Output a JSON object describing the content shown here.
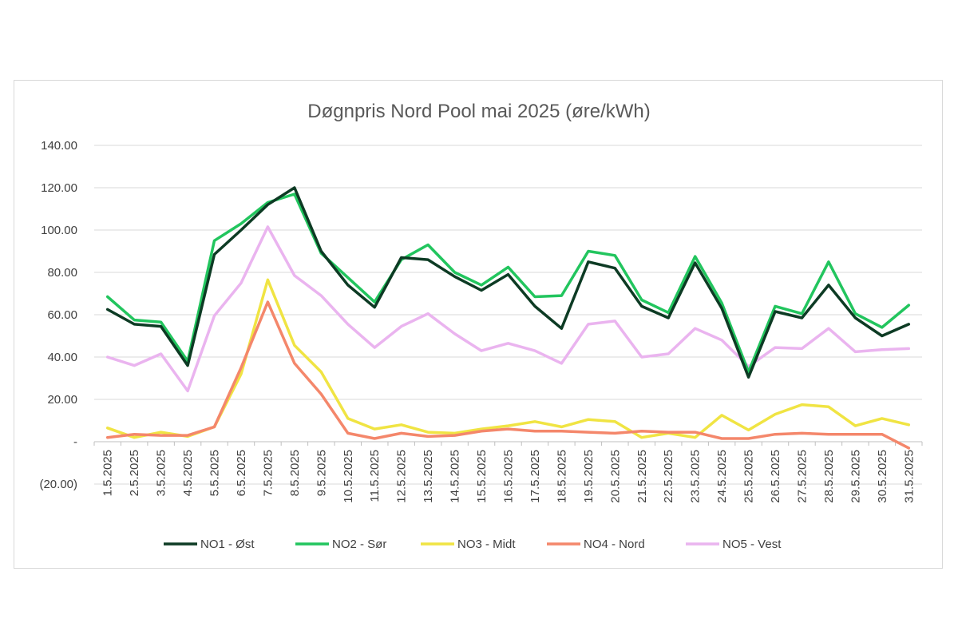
{
  "chart_data": {
    "type": "line",
    "title": "Døgnpris Nord Pool mai 2025 (øre/kWh)",
    "xlabel": "",
    "ylabel": "",
    "ylim": [
      -20,
      140
    ],
    "y_ticks": [
      {
        "value": 140,
        "label": "140.00"
      },
      {
        "value": 120,
        "label": "120.00"
      },
      {
        "value": 100,
        "label": "100.00"
      },
      {
        "value": 80,
        "label": "80.00"
      },
      {
        "value": 60,
        "label": "60.00"
      },
      {
        "value": 40,
        "label": "40.00"
      },
      {
        "value": 20,
        "label": "20.00"
      },
      {
        "value": 0,
        "label": "-"
      },
      {
        "value": -20,
        "label": "(20.00)"
      }
    ],
    "grid": true,
    "legend": "bottom",
    "categories": [
      "1.5.2025",
      "2.5.2025",
      "3.5.2025",
      "4.5.2025",
      "5.5.2025",
      "6.5.2025",
      "7.5.2025",
      "8.5.2025",
      "9.5.2025",
      "10.5.2025",
      "11.5.2025",
      "12.5.2025",
      "13.5.2025",
      "14.5.2025",
      "15.5.2025",
      "16.5.2025",
      "17.5.2025",
      "18.5.2025",
      "19.5.2025",
      "20.5.2025",
      "21.5.2025",
      "22.5.2025",
      "23.5.2025",
      "24.5.2025",
      "25.5.2025",
      "26.5.2025",
      "27.5.2025",
      "28.5.2025",
      "29.5.2025",
      "30.5.2025",
      "31.5.2025"
    ],
    "series": [
      {
        "name": "NO1 - Øst",
        "color": "#0d3b24",
        "values": [
          62.5,
          55.5,
          54.5,
          36,
          88.5,
          100,
          112,
          120,
          90,
          74,
          63.5,
          87,
          86,
          78,
          71.5,
          79,
          64,
          53.5,
          85,
          82,
          64,
          58.5,
          84.5,
          63,
          30.5,
          61.5,
          58.5,
          74,
          58.5,
          50,
          55.5
        ]
      },
      {
        "name": "NO2 - Sør",
        "color": "#22c55e",
        "values": [
          68.5,
          57.5,
          56.5,
          38,
          95,
          103,
          113,
          117,
          89,
          77.5,
          66,
          86,
          93,
          80,
          74,
          82.5,
          68.5,
          69,
          90,
          88,
          67,
          61,
          87.5,
          65.5,
          33,
          64,
          60.5,
          85,
          60.5,
          54,
          64.5
        ]
      },
      {
        "name": "NO3 - Midt",
        "color": "#f0e443",
        "values": [
          6.5,
          2,
          4.5,
          2.5,
          7,
          32,
          76.5,
          45.5,
          33,
          11,
          6,
          8,
          4.5,
          4,
          6,
          7.5,
          9.5,
          7,
          10.5,
          9.5,
          2,
          4,
          2,
          12.5,
          5.5,
          13,
          17.5,
          16.5,
          7.5,
          11,
          8
        ]
      },
      {
        "name": "NO4 - Nord",
        "color": "#f4876b",
        "values": [
          2,
          3.5,
          3,
          3,
          7,
          35,
          66,
          37,
          22.5,
          4,
          1.5,
          4,
          2.5,
          3,
          5,
          6,
          5,
          5,
          4.5,
          4,
          5,
          4.5,
          4.5,
          1.5,
          1.5,
          3.5,
          4,
          3.5,
          3.5,
          3.5,
          -3
        ]
      },
      {
        "name": "NO5 - Vest",
        "color": "#eab4ef",
        "values": [
          40,
          36,
          41.5,
          24,
          59.5,
          75,
          101.5,
          78.5,
          69,
          55.5,
          44.5,
          54.5,
          60.5,
          51,
          43,
          46.5,
          43,
          37,
          55.5,
          57,
          40,
          41.5,
          53.5,
          48,
          35.5,
          44.5,
          44,
          53.5,
          42.5,
          43.5,
          44
        ]
      }
    ]
  }
}
